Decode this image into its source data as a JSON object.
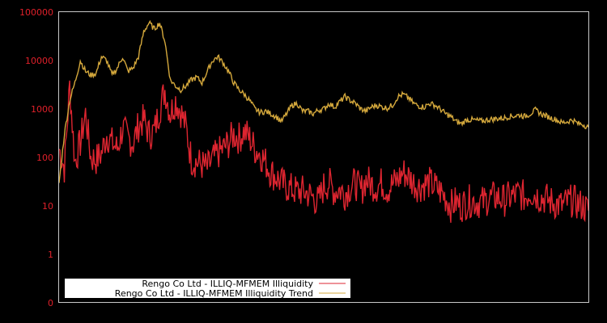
{
  "chart_data": {
    "type": "line",
    "title": "",
    "xlabel": "",
    "ylabel": "",
    "yscale": "log",
    "ylim": [
      0.1,
      100000
    ],
    "y_tick_labels": [
      "100000",
      "10000",
      "1000",
      "100",
      "10",
      "1",
      "0"
    ],
    "y_tick_values": [
      100000,
      10000,
      1000,
      100,
      10,
      1,
      0.1
    ],
    "grid": false,
    "legend_position": "lower-left",
    "x_index_range": [
      0,
      100
    ],
    "series": [
      {
        "name": "Rengo Co Ltd - ILLIQ-MFMEM Illiquidity",
        "color": "#dd2530",
        "x": [
          0,
          1,
          2,
          3,
          4,
          5,
          6,
          7,
          8,
          9,
          10,
          11,
          12,
          13,
          14,
          15,
          16,
          17,
          18,
          19,
          20,
          21,
          22,
          23,
          24,
          25,
          26,
          27,
          28,
          29,
          30,
          31,
          32,
          33,
          34,
          35,
          36,
          37,
          38,
          39,
          40,
          41,
          42,
          43,
          44,
          45,
          46,
          47,
          48,
          49,
          50,
          51,
          52,
          53,
          54,
          55,
          56,
          57,
          58,
          59,
          60,
          61,
          62,
          63,
          64,
          65,
          66,
          67,
          68,
          69,
          70,
          71,
          72,
          73,
          74,
          75,
          76,
          77,
          78,
          79,
          80,
          81,
          82,
          83,
          84,
          85,
          86,
          87,
          88,
          89,
          90,
          91,
          92,
          93,
          94,
          95,
          96,
          97,
          98,
          99,
          100
        ],
        "values": [
          150,
          60,
          3000,
          80,
          200,
          800,
          100,
          90,
          120,
          300,
          200,
          150,
          400,
          250,
          200,
          450,
          600,
          300,
          350,
          1000,
          2500,
          800,
          1500,
          900,
          400,
          90,
          80,
          70,
          60,
          90,
          120,
          150,
          200,
          300,
          250,
          350,
          250,
          150,
          120,
          80,
          50,
          40,
          30,
          25,
          22,
          20,
          20,
          18,
          15,
          12,
          25,
          30,
          20,
          22,
          18,
          25,
          30,
          20,
          35,
          28,
          25,
          30,
          22,
          28,
          35,
          50,
          40,
          30,
          25,
          28,
          30,
          25,
          20,
          15,
          10,
          12,
          10,
          12,
          13,
          12,
          12,
          14,
          15,
          15,
          13,
          15,
          16,
          18,
          15,
          20,
          17,
          15,
          14,
          12,
          11,
          10,
          12,
          13,
          11,
          10,
          8
        ]
      },
      {
        "name": "Rengo Co Ltd - ILLIQ-MFMEM Illiquidity Trend",
        "color": "#d4a83c",
        "x": [
          0,
          1,
          2,
          3,
          4,
          5,
          6,
          7,
          8,
          9,
          10,
          11,
          12,
          13,
          14,
          15,
          16,
          17,
          18,
          19,
          20,
          21,
          22,
          23,
          24,
          25,
          26,
          27,
          28,
          29,
          30,
          31,
          32,
          33,
          34,
          35,
          36,
          37,
          38,
          39,
          40,
          41,
          42,
          43,
          44,
          45,
          46,
          47,
          48,
          49,
          50,
          51,
          52,
          53,
          54,
          55,
          56,
          57,
          58,
          59,
          60,
          61,
          62,
          63,
          64,
          65,
          66,
          67,
          68,
          69,
          70,
          71,
          72,
          73,
          74,
          75,
          76,
          77,
          78,
          79,
          80,
          81,
          82,
          83,
          84,
          85,
          86,
          87,
          88,
          89,
          90,
          91,
          92,
          93,
          94,
          95,
          96,
          97,
          98,
          99,
          100
        ],
        "values": [
          30,
          300,
          1500,
          3500,
          10000,
          6000,
          5000,
          5500,
          12000,
          10000,
          5000,
          7000,
          12000,
          6000,
          7000,
          12000,
          40000,
          60000,
          45000,
          60000,
          25000,
          4000,
          3000,
          2500,
          3000,
          4000,
          4500,
          3500,
          6000,
          10000,
          12000,
          9000,
          6000,
          3500,
          2500,
          2000,
          1500,
          1000,
          850,
          900,
          800,
          700,
          550,
          800,
          1200,
          1300,
          900,
          900,
          800,
          950,
          1000,
          1300,
          1100,
          1400,
          1800,
          1500,
          1300,
          1000,
          900,
          1100,
          1200,
          1100,
          1050,
          1200,
          1800,
          2000,
          1700,
          1300,
          1150,
          1100,
          1300,
          1200,
          1000,
          800,
          700,
          550,
          500,
          600,
          600,
          580,
          560,
          600,
          620,
          640,
          650,
          700,
          720,
          750,
          700,
          800,
          950,
          800,
          720,
          650,
          600,
          520,
          550,
          600,
          500,
          480,
          420
        ]
      }
    ]
  },
  "legend": {
    "items": [
      {
        "label": "Rengo Co Ltd - ILLIQ-MFMEM Illiquidity",
        "color": "#dd2530"
      },
      {
        "label": "Rengo Co Ltd - ILLIQ-MFMEM Illiquidity Trend",
        "color": "#d4a83c"
      }
    ]
  },
  "colors": {
    "background": "#000000",
    "axis_frame": "#c8c8c8",
    "tick_label": "#e0202a",
    "legend_bg": "#ffffff"
  }
}
